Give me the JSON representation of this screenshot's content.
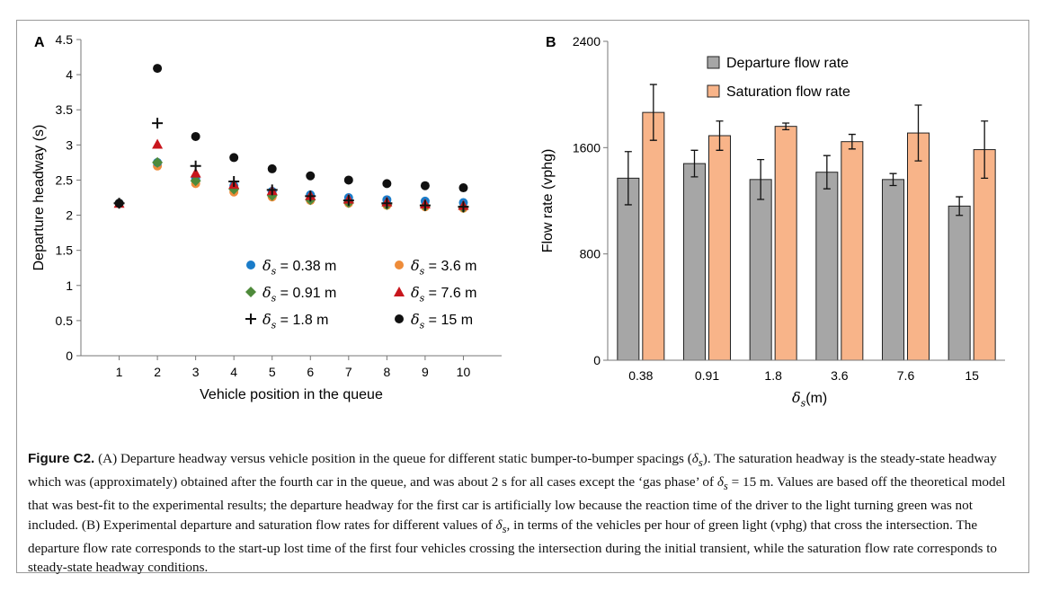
{
  "chart_data": [
    {
      "panel_label": "A",
      "type": "scatter",
      "xlabel": "Vehicle position in the queue",
      "ylabel": "Departure headway (s)",
      "x": [
        1,
        2,
        3,
        4,
        5,
        6,
        7,
        8,
        9,
        10
      ],
      "xlim": [
        0,
        11
      ],
      "ylim": [
        0,
        4.5
      ],
      "yticks": [
        "0",
        "0.5",
        "1",
        "1.5",
        "2",
        "2.5",
        "3",
        "3.5",
        "4",
        "4.5"
      ],
      "xticks": [
        "1",
        "2",
        "3",
        "4",
        "5",
        "6",
        "7",
        "8",
        "9",
        "10"
      ],
      "legend_position": "bottom-right",
      "series": [
        {
          "name": "= 0.38 m",
          "marker": "circle",
          "color": "#1a7cc9",
          "values": [
            2.17,
            2.75,
            2.52,
            2.42,
            2.34,
            2.29,
            2.25,
            2.22,
            2.2,
            2.18
          ]
        },
        {
          "name": "= 0.91 m",
          "marker": "diamond",
          "color": "#4e8a3a",
          "values": [
            2.17,
            2.75,
            2.49,
            2.37,
            2.28,
            2.22,
            2.18,
            2.15,
            2.13,
            2.11
          ]
        },
        {
          "name": "= 1.8 m",
          "marker": "plus",
          "color": "#111111",
          "values": [
            2.17,
            3.31,
            2.7,
            2.48,
            2.36,
            2.27,
            2.21,
            2.17,
            2.14,
            2.12
          ]
        },
        {
          "name": "= 3.6 m",
          "marker": "circle",
          "color": "#ee8c3a",
          "values": [
            2.17,
            2.7,
            2.45,
            2.33,
            2.26,
            2.21,
            2.17,
            2.14,
            2.12,
            2.1
          ]
        },
        {
          "name": "= 7.6 m",
          "marker": "triangle",
          "color": "#c8161d",
          "values": [
            2.17,
            3.01,
            2.6,
            2.44,
            2.35,
            2.28,
            2.23,
            2.19,
            2.16,
            2.14
          ]
        },
        {
          "name": "= 15 m",
          "marker": "circle",
          "color": "#111111",
          "values": [
            2.17,
            4.09,
            3.12,
            2.82,
            2.66,
            2.56,
            2.5,
            2.45,
            2.42,
            2.39
          ]
        }
      ]
    },
    {
      "panel_label": "B",
      "type": "bar",
      "xlabel": "(m)",
      "ylabel": "Flow rate (vphg)",
      "categories": [
        "0.38",
        "0.91",
        "1.8",
        "3.6",
        "7.6",
        "15"
      ],
      "ylim": [
        0,
        2400
      ],
      "yticks": [
        "0",
        "800",
        "1600",
        "2400"
      ],
      "legend_position": "top",
      "series": [
        {
          "name": "Departure flow rate",
          "color": "#a6a6a6",
          "values": [
            1370,
            1480,
            1360,
            1415,
            1360,
            1160
          ],
          "errors": [
            200,
            100,
            150,
            125,
            45,
            70
          ]
        },
        {
          "name": "Saturation flow rate",
          "color": "#f8b489",
          "values": [
            1865,
            1690,
            1760,
            1645,
            1710,
            1585
          ],
          "errors": [
            210,
            110,
            25,
            55,
            210,
            215
          ]
        }
      ]
    }
  ],
  "caption": {
    "label": "Figure C2.",
    "text_1": " (A) Departure headway versus vehicle position in the queue for different static bumper-to-bumper spacings (",
    "text_2": "). The saturation headway is the steady-state headway which was (approximately) obtained after the fourth car in the queue, and was about 2 s for all cases except the ‘gas phase’ of ",
    "text_3": " = 15 m. Values are based off the theoretical model that was best-fit to the experimental results; the departure headway for the first car is artificially low because the reaction time of the driver to the light turning green was not included. (B) Experimental departure and saturation flow rates for different values of ",
    "text_4": ", in terms of the vehicles per hour of green light (vphg) that cross the intersection. The departure flow rate corresponds to the start-up lost time of the first four vehicles crossing the intersection during the initial transient, while the saturation flow rate corresponds to steady-state headway conditions."
  },
  "symbol": {
    "base": "δ",
    "sub": "s"
  }
}
